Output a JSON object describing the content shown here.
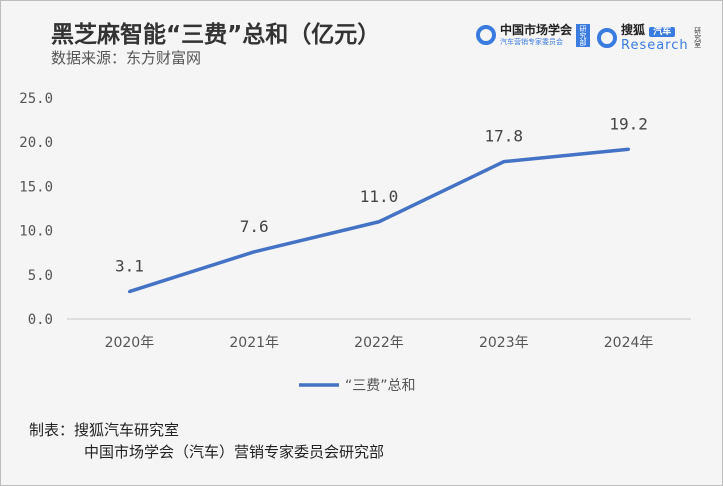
{
  "header": {
    "title": "黑芝麻智能“三费”总和（亿元）",
    "source": "数据来源：东方财富网"
  },
  "logos": {
    "cmsa_title": "中国市场学会",
    "cmsa_sub": "汽车营销专家委员会",
    "cmsa_badge": "研究部",
    "sohu_title": "搜狐",
    "sohu_badge": "汽车",
    "sohu_research": "Research",
    "sohu_side": "研究室"
  },
  "footer": {
    "line1": "制表：搜狐汽车研究室",
    "line2": "中国市场学会（汽车）营销专家委员会研究部"
  },
  "colors": {
    "line": "#4472c4"
  },
  "chart_data": {
    "type": "line",
    "categories": [
      "2020年",
      "2021年",
      "2022年",
      "2023年",
      "2024年"
    ],
    "series": [
      {
        "name": "“三费”总和",
        "values": [
          3.1,
          7.6,
          11.0,
          17.8,
          19.2
        ]
      }
    ],
    "data_labels": [
      "3.1",
      "7.6",
      "11.0",
      "17.8",
      "19.2"
    ],
    "yticks": [
      "0.0",
      "5.0",
      "10.0",
      "15.0",
      "20.0",
      "25.0"
    ],
    "ylim": [
      0,
      25
    ],
    "legend": "bottom",
    "grid": false
  }
}
